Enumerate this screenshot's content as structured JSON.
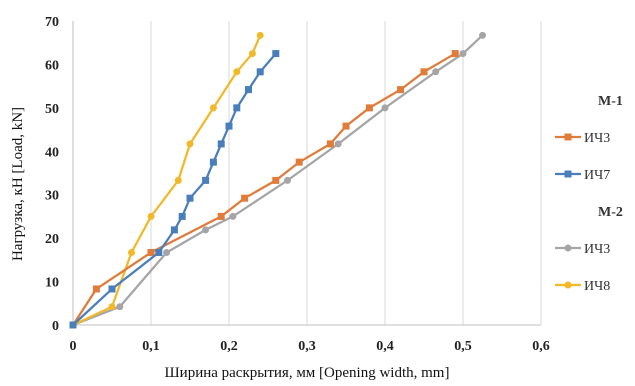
{
  "chart_data": {
    "type": "line",
    "xlabel": "Ширина раскрытия, мм [Opening width, mm]",
    "ylabel": "Нагрузка, кН [Load, kN]",
    "xlim": [
      0,
      0.6
    ],
    "ylim": [
      0,
      70
    ],
    "x_ticks": [
      "0",
      "0,1",
      "0,2",
      "0,3",
      "0,4",
      "0,5",
      "0,6"
    ],
    "y_ticks": [
      "0",
      "10",
      "20",
      "30",
      "40",
      "50",
      "60",
      "70"
    ],
    "grid": "vertical",
    "legend_position": "right",
    "legend_groups": [
      {
        "label": "М-1",
        "series": [
          0,
          1
        ]
      },
      {
        "label": "М-2",
        "series": [
          2,
          3
        ]
      }
    ],
    "series": [
      {
        "name": "ИЧ3",
        "color": "#E07B39",
        "marker": "square",
        "points": [
          [
            0,
            0
          ],
          [
            0.03,
            8.3
          ],
          [
            0.1,
            16.7
          ],
          [
            0.19,
            25
          ],
          [
            0.22,
            29.2
          ],
          [
            0.26,
            33.3
          ],
          [
            0.29,
            37.5
          ],
          [
            0.33,
            41.7
          ],
          [
            0.35,
            45.8
          ],
          [
            0.38,
            50
          ],
          [
            0.42,
            54.2
          ],
          [
            0.45,
            58.3
          ],
          [
            0.49,
            62.5
          ]
        ]
      },
      {
        "name": "ИЧ7",
        "color": "#4A7EBB",
        "marker": "square",
        "points": [
          [
            0,
            0
          ],
          [
            0.05,
            8.3
          ],
          [
            0.11,
            16.7
          ],
          [
            0.13,
            21.9
          ],
          [
            0.14,
            25
          ],
          [
            0.15,
            29.2
          ],
          [
            0.17,
            33.3
          ],
          [
            0.18,
            37.5
          ],
          [
            0.19,
            41.7
          ],
          [
            0.2,
            45.8
          ],
          [
            0.21,
            50
          ],
          [
            0.225,
            54.2
          ],
          [
            0.24,
            58.3
          ],
          [
            0.26,
            62.5
          ]
        ]
      },
      {
        "name": "ИЧ3",
        "color": "#A5A5A5",
        "marker": "circle",
        "points": [
          [
            0,
            0
          ],
          [
            0.06,
            4.2
          ],
          [
            0.12,
            16.7
          ],
          [
            0.17,
            21.9
          ],
          [
            0.205,
            25
          ],
          [
            0.275,
            33.3
          ],
          [
            0.34,
            41.7
          ],
          [
            0.4,
            50
          ],
          [
            0.465,
            58.3
          ],
          [
            0.5,
            62.5
          ],
          [
            0.525,
            66.7
          ]
        ]
      },
      {
        "name": "ИЧ8",
        "color": "#F2B827",
        "marker": "circle",
        "points": [
          [
            0,
            0
          ],
          [
            0.05,
            4.2
          ],
          [
            0.075,
            16.7
          ],
          [
            0.1,
            25
          ],
          [
            0.135,
            33.3
          ],
          [
            0.15,
            41.7
          ],
          [
            0.18,
            50
          ],
          [
            0.21,
            58.3
          ],
          [
            0.23,
            62.5
          ],
          [
            0.24,
            66.7
          ]
        ]
      }
    ]
  }
}
